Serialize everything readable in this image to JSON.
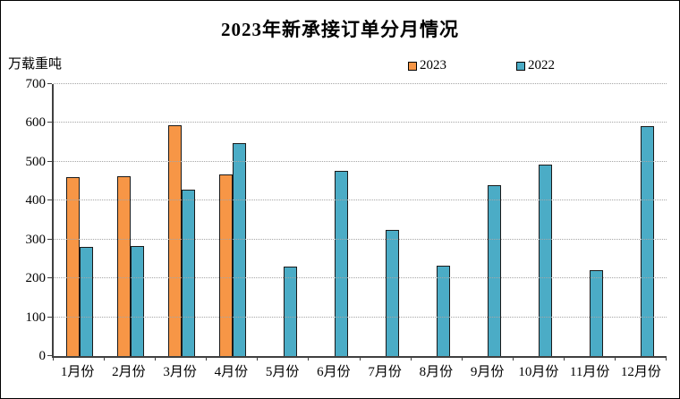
{
  "title": "2023年新承接订单分月情况",
  "unit_label": "万载重吨",
  "colors": {
    "series_2023": "#F79646",
    "series_2022": "#4BACC6",
    "bar_border": "#1a1a1a",
    "axis": "#404040",
    "gridline": "#a6a6a6",
    "background": "#ffffff",
    "frame_border": "#000000"
  },
  "chart_data": {
    "type": "bar",
    "title": "2023年新承接订单分月情况",
    "xlabel": "",
    "ylabel": "万载重吨",
    "categories": [
      "1月份",
      "2月份",
      "3月份",
      "4月份",
      "5月份",
      "6月份",
      "7月份",
      "8月份",
      "9月份",
      "10月份",
      "11月份",
      "12月份"
    ],
    "series": [
      {
        "name": "2023",
        "color": "#F79646",
        "values": [
          460,
          462,
          594,
          468,
          null,
          null,
          null,
          null,
          null,
          null,
          null,
          null
        ]
      },
      {
        "name": "2022",
        "color": "#4BACC6",
        "values": [
          280,
          283,
          428,
          547,
          230,
          476,
          325,
          232,
          440,
          493,
          220,
          591
        ]
      }
    ],
    "ylim": [
      0,
      700
    ],
    "yticks": [
      0,
      100,
      200,
      300,
      400,
      500,
      600,
      700
    ],
    "grid": "horizontal dotted",
    "legend_position": "top-center"
  }
}
